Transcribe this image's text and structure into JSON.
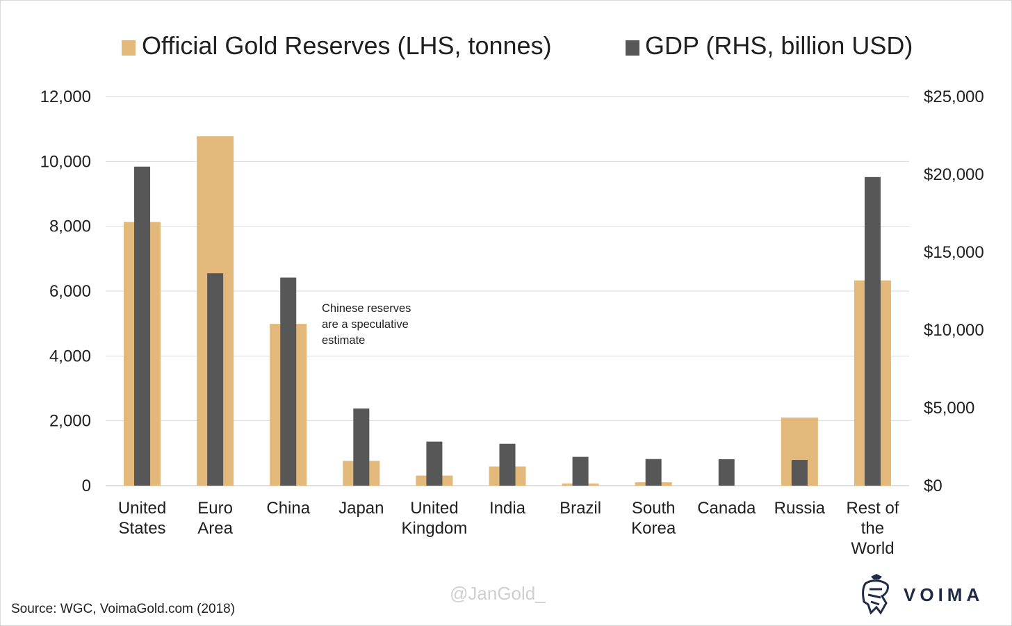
{
  "chart_data": {
    "type": "bar",
    "categories": [
      [
        "United",
        "States"
      ],
      [
        "Euro",
        "Area"
      ],
      [
        "China"
      ],
      [
        "Japan"
      ],
      [
        "United",
        "Kingdom"
      ],
      [
        "India"
      ],
      [
        "Brazil"
      ],
      [
        "South",
        "Korea"
      ],
      [
        "Canada"
      ],
      [
        "Russia"
      ],
      [
        "Rest of",
        "the",
        "World"
      ]
    ],
    "series": [
      {
        "name": "Official Gold Reserves (LHS, tonnes)",
        "axis": "left",
        "color": "#e2b97b",
        "values": [
          8133,
          10775,
          4990,
          765,
          310,
          590,
          67,
          104,
          0,
          2100,
          6330
        ]
      },
      {
        "name": "GDP (RHS, billion USD)",
        "axis": "right",
        "color": "#575757",
        "values": [
          20500,
          13650,
          13370,
          4960,
          2830,
          2690,
          1850,
          1710,
          1700,
          1650,
          19830
        ]
      }
    ],
    "y_left": {
      "lim": [
        0,
        12000
      ],
      "ticks": [
        "0",
        "2,000",
        "4,000",
        "6,000",
        "8,000",
        "10,000",
        "12,000"
      ]
    },
    "y_right": {
      "lim": [
        0,
        25000
      ],
      "ticks": [
        "$0",
        "$5,000",
        "$10,000",
        "$15,000",
        "$20,000",
        "$25,000"
      ]
    },
    "grid": true,
    "legend_position": "top",
    "annotation": [
      "Chinese reserves",
      "are a speculative",
      "estimate"
    ]
  },
  "footer": {
    "source": "Source: WGC, VoimaGold.com (2018)",
    "watermark": "@JanGold_",
    "brand": "VOIMA"
  }
}
